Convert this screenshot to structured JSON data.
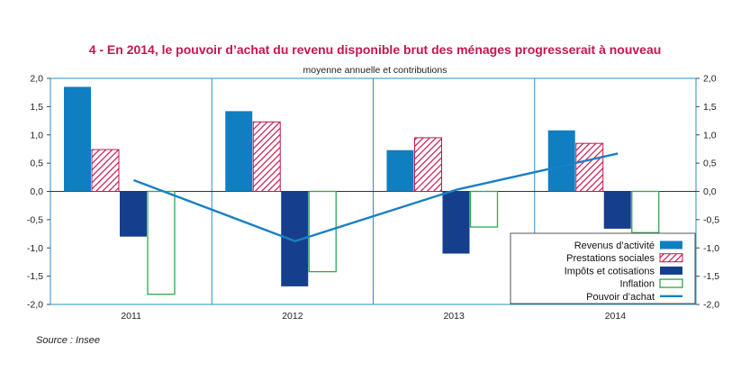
{
  "title": "4 - En 2014, le pouvoir d’achat du revenu disponible brut des ménages progresserait à nouveau",
  "subtitle": "moyenne annuelle et contributions",
  "source": "Source : Insee",
  "colors": {
    "frame": "#2a8fca",
    "revenus": "#0f7fc2",
    "prestations": "#c4174b",
    "impots": "#153f8c",
    "inflation": "#2fa84f",
    "pouvoir": "#1a80c4"
  },
  "chart_data": {
    "type": "bar",
    "title": "4 - En 2014, le pouvoir d’achat du revenu disponible brut des ménages progresserait à nouveau",
    "subtitle": "moyenne annuelle et contributions",
    "categories": [
      "2011",
      "2012",
      "2013",
      "2014"
    ],
    "ylim": [
      -2.0,
      2.0
    ],
    "yticks": [
      "2,0",
      "1,5",
      "1,0",
      "0,5",
      "0,0",
      "-0,5",
      "-1,0",
      "-1,5",
      "-2,0"
    ],
    "series": [
      {
        "name": "Revenus d’activité",
        "style": "solid",
        "values": [
          1.85,
          1.42,
          0.73,
          1.08
        ]
      },
      {
        "name": "Prestations sociales",
        "style": "hatched",
        "values": [
          0.74,
          1.23,
          0.95,
          0.85
        ]
      },
      {
        "name": "Impôts et cotisations",
        "style": "solid",
        "values": [
          -0.8,
          -1.68,
          -1.1,
          -0.66
        ]
      },
      {
        "name": "Inflation",
        "style": "outline",
        "values": [
          -1.82,
          -1.42,
          -0.63,
          -0.73
        ]
      },
      {
        "name": "Pouvoir d’achat",
        "style": "line",
        "values": [
          0.2,
          -0.88,
          0.03,
          0.67
        ]
      }
    ],
    "legend_position": "bottom-right",
    "grid": "vertical lines between years"
  }
}
